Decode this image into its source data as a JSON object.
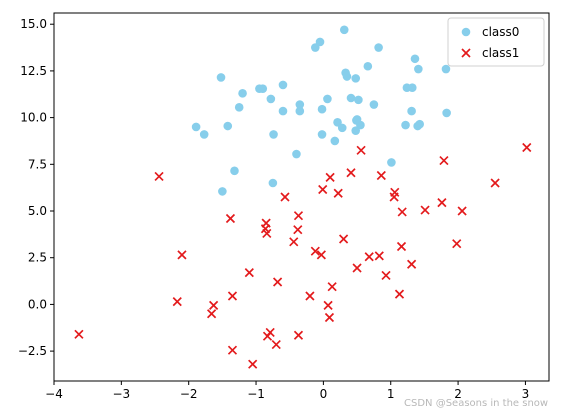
{
  "chart_data": {
    "type": "scatter",
    "title": "",
    "xlabel": "",
    "ylabel": "",
    "xlim": [
      -4,
      3.35
    ],
    "ylim": [
      -4.1,
      15.6
    ],
    "grid": false,
    "legend_position": "top-right",
    "x_ticks": [
      -4,
      -3,
      -2,
      -1,
      0,
      1,
      2,
      3
    ],
    "y_ticks": [
      -2.5,
      0.0,
      2.5,
      5.0,
      7.5,
      10.0,
      12.5,
      15.0
    ],
    "x_tick_labels": [
      "−4",
      "−3",
      "−2",
      "−1",
      "0",
      "1",
      "2",
      "3"
    ],
    "y_tick_labels": [
      "−2.5",
      "0.0",
      "2.5",
      "5.0",
      "7.5",
      "10.0",
      "12.5",
      "15.0"
    ],
    "series": [
      {
        "name": "class0",
        "marker": "circle",
        "color": "#87ceeb",
        "points": [
          [
            0.31,
            14.7
          ],
          [
            -0.05,
            14.05
          ],
          [
            -0.12,
            13.75
          ],
          [
            0.82,
            13.75
          ],
          [
            1.36,
            13.15
          ],
          [
            -1.52,
            12.15
          ],
          [
            0.33,
            12.4
          ],
          [
            0.66,
            12.75
          ],
          [
            1.41,
            12.6
          ],
          [
            1.82,
            12.6
          ],
          [
            0.48,
            12.1
          ],
          [
            0.35,
            12.2
          ],
          [
            -0.6,
            11.75
          ],
          [
            -0.95,
            11.55
          ],
          [
            -0.9,
            11.55
          ],
          [
            -1.2,
            11.3
          ],
          [
            -0.78,
            11.0
          ],
          [
            0.06,
            11.0
          ],
          [
            0.41,
            11.05
          ],
          [
            0.52,
            10.95
          ],
          [
            1.24,
            11.6
          ],
          [
            1.32,
            11.6
          ],
          [
            -1.25,
            10.55
          ],
          [
            -0.6,
            10.35
          ],
          [
            -0.35,
            10.7
          ],
          [
            -0.35,
            10.35
          ],
          [
            -0.02,
            10.45
          ],
          [
            0.75,
            10.7
          ],
          [
            1.31,
            10.35
          ],
          [
            1.83,
            10.25
          ],
          [
            0.5,
            9.9
          ],
          [
            0.21,
            9.75
          ],
          [
            0.28,
            9.45
          ],
          [
            1.4,
            9.55
          ],
          [
            1.43,
            9.65
          ],
          [
            1.22,
            9.6
          ],
          [
            -1.42,
            9.55
          ],
          [
            -1.89,
            9.5
          ],
          [
            -1.77,
            9.1
          ],
          [
            -0.74,
            9.1
          ],
          [
            -0.02,
            9.1
          ],
          [
            0.48,
            9.3
          ],
          [
            0.55,
            9.6
          ],
          [
            0.17,
            8.75
          ],
          [
            -0.4,
            8.05
          ],
          [
            -1.32,
            7.15
          ],
          [
            1.01,
            7.6
          ],
          [
            -0.75,
            6.5
          ],
          [
            -1.5,
            6.05
          ],
          [
            0.49,
            9.85
          ]
        ]
      },
      {
        "name": "class1",
        "marker": "x",
        "color": "#e31a1c",
        "points": [
          [
            3.02,
            8.4
          ],
          [
            0.56,
            8.25
          ],
          [
            1.79,
            7.7
          ],
          [
            -2.44,
            6.85
          ],
          [
            0.1,
            6.8
          ],
          [
            0.41,
            7.05
          ],
          [
            0.86,
            6.9
          ],
          [
            2.55,
            6.5
          ],
          [
            -0.01,
            6.15
          ],
          [
            0.22,
            5.95
          ],
          [
            1.06,
            6.0
          ],
          [
            1.05,
            5.75
          ],
          [
            -0.57,
            5.75
          ],
          [
            1.76,
            5.45
          ],
          [
            1.51,
            5.05
          ],
          [
            2.06,
            5.0
          ],
          [
            1.17,
            4.95
          ],
          [
            -0.37,
            4.75
          ],
          [
            -1.38,
            4.6
          ],
          [
            -0.85,
            4.35
          ],
          [
            -0.86,
            4.05
          ],
          [
            -0.84,
            3.8
          ],
          [
            -0.38,
            4.0
          ],
          [
            -0.44,
            3.35
          ],
          [
            0.3,
            3.5
          ],
          [
            1.98,
            3.25
          ],
          [
            1.16,
            3.1
          ],
          [
            -0.12,
            2.85
          ],
          [
            -0.03,
            2.65
          ],
          [
            -2.1,
            2.65
          ],
          [
            0.68,
            2.55
          ],
          [
            0.83,
            2.6
          ],
          [
            1.31,
            2.15
          ],
          [
            0.5,
            1.95
          ],
          [
            -1.1,
            1.7
          ],
          [
            0.93,
            1.55
          ],
          [
            -0.68,
            1.2
          ],
          [
            0.13,
            0.95
          ],
          [
            1.13,
            0.55
          ],
          [
            -1.35,
            0.45
          ],
          [
            -0.2,
            0.45
          ],
          [
            -2.17,
            0.15
          ],
          [
            -1.63,
            -0.05
          ],
          [
            0.07,
            -0.05
          ],
          [
            -1.66,
            -0.5
          ],
          [
            0.09,
            -0.7
          ],
          [
            -0.79,
            -1.5
          ],
          [
            -0.83,
            -1.7
          ],
          [
            -0.37,
            -1.65
          ],
          [
            -3.63,
            -1.6
          ],
          [
            -0.7,
            -2.15
          ],
          [
            -1.35,
            -2.45
          ],
          [
            -1.05,
            -3.2
          ]
        ]
      }
    ]
  },
  "watermark": "CSDN @Seasons in the snow"
}
